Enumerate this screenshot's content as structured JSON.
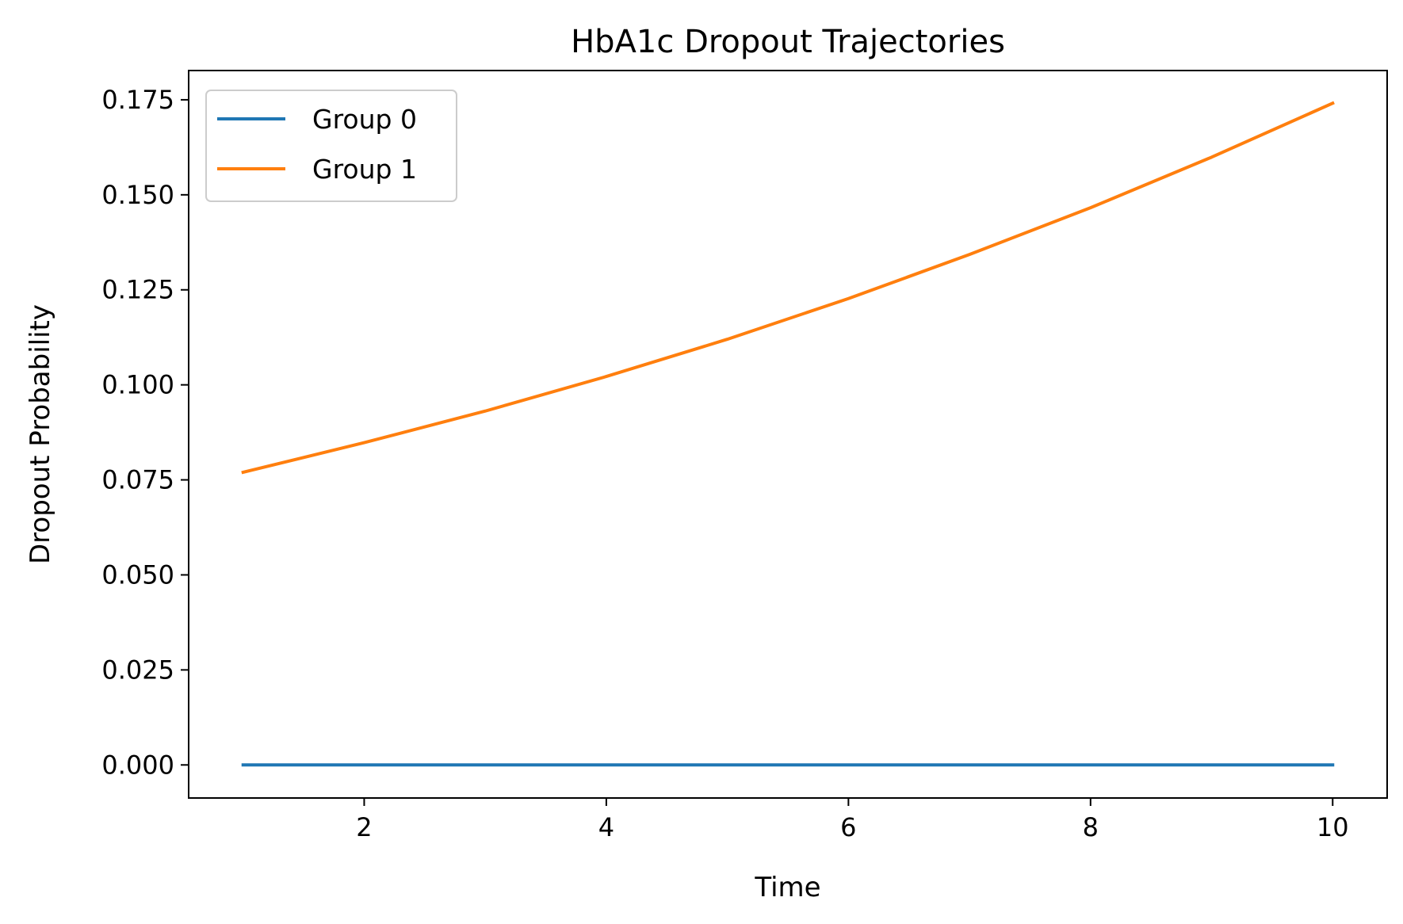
{
  "chart_data": {
    "type": "line",
    "title": "HbA1c Dropout Trajectories",
    "xlabel": "Time",
    "ylabel": "Dropout Probability",
    "xlim": [
      0.55,
      10.45
    ],
    "ylim": [
      -0.0087,
      0.1827
    ],
    "xticks": [
      2,
      4,
      6,
      8,
      10
    ],
    "xtick_labels": [
      "2",
      "4",
      "6",
      "8",
      "10"
    ],
    "yticks": [
      0,
      0.025,
      0.05,
      0.075,
      0.1,
      0.125,
      0.15,
      0.175
    ],
    "ytick_labels": [
      "0.000",
      "0.025",
      "0.050",
      "0.075",
      "0.100",
      "0.125",
      "0.150",
      "0.175"
    ],
    "grid": false,
    "legend": "top-left",
    "x": [
      1,
      2,
      3,
      4,
      5,
      6,
      7,
      8,
      9,
      10
    ],
    "series": [
      {
        "name": "Group 0",
        "color": "#1f77b4",
        "values": [
          0,
          0,
          0,
          0,
          0,
          0,
          0,
          0,
          0,
          0
        ]
      },
      {
        "name": "Group 1",
        "color": "#ff7f0e",
        "values": [
          0.077,
          0.0848,
          0.0931,
          0.1022,
          0.112,
          0.1227,
          0.1343,
          0.1466,
          0.1599,
          0.1741
        ]
      }
    ]
  }
}
